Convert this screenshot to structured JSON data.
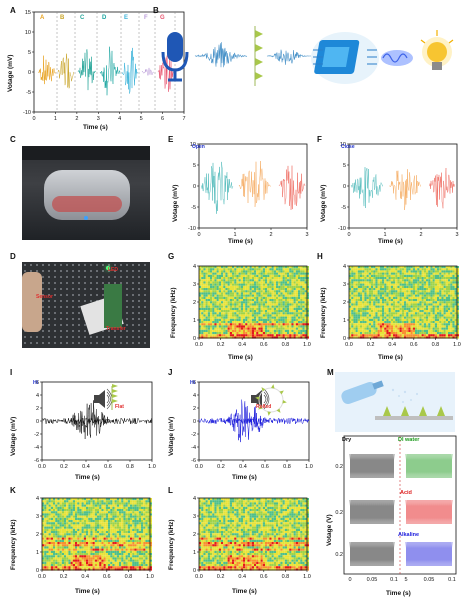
{
  "panels": {
    "A": {
      "letter": "A",
      "xlabel": "Time (s)",
      "ylabel": "Votage (mV)",
      "xticks": [
        "0",
        "1",
        "2",
        "3",
        "4",
        "5",
        "6",
        "7"
      ],
      "yticks": [
        "15",
        "10",
        "5",
        "0",
        "-5",
        "-10"
      ],
      "segments": [
        {
          "label": "A",
          "color": "#e8a321"
        },
        {
          "label": "B",
          "color": "#c9a52a"
        },
        {
          "label": "C",
          "color": "#2aa79b"
        },
        {
          "label": "D",
          "color": "#1aa5a0"
        },
        {
          "label": "E",
          "color": "#3bb3d9"
        },
        {
          "label": "F",
          "color": "#b99ad8"
        },
        {
          "label": "G",
          "color": "#e8546f"
        }
      ]
    },
    "B": {
      "letter": "B"
    },
    "C": {
      "letter": "C"
    },
    "D": {
      "letter": "D",
      "notes": {
        "sensor": "Sensor",
        "led": "LED",
        "transfer": "Transfer"
      }
    },
    "E": {
      "letter": "E",
      "tag": "Open",
      "xlabel": "Time (s)",
      "ylabel": "Votage (mV)",
      "xticks": [
        "0",
        "1",
        "2",
        "3"
      ],
      "yticks": [
        "10",
        "5",
        "0",
        "-5",
        "-10"
      ]
    },
    "F": {
      "letter": "F",
      "tag": "Close",
      "xlabel": "Time (s)",
      "ylabel": "Votage (mV)",
      "xticks": [
        "0",
        "1",
        "2",
        "3"
      ],
      "yticks": [
        "10",
        "5",
        "0",
        "-5",
        "-10"
      ]
    },
    "G": {
      "letter": "G",
      "xlabel": "Time (s)",
      "ylabel": "Frequency (kHz)",
      "xticks": [
        "0.0",
        "0.2",
        "0.4",
        "0.6",
        "0.8",
        "1.0"
      ],
      "yticks": [
        "4",
        "3",
        "2",
        "1",
        "0"
      ]
    },
    "H": {
      "letter": "H",
      "xlabel": "Time (s)",
      "ylabel": "Frequency (kHz)",
      "xticks": [
        "0.0",
        "0.2",
        "0.4",
        "0.6",
        "0.8",
        "1.0"
      ],
      "yticks": [
        "4",
        "3",
        "2",
        "1",
        "0"
      ]
    },
    "I": {
      "letter": "I",
      "tag": "Hi",
      "state": "Flat",
      "xlabel": "Time (s)",
      "ylabel": "Voltage (mV)",
      "xticks": [
        "0.0",
        "0.2",
        "0.4",
        "0.6",
        "0.8",
        "1.0"
      ],
      "yticks": [
        "6",
        "4",
        "2",
        "0",
        "-2",
        "-4",
        "-6"
      ]
    },
    "J": {
      "letter": "J",
      "tag": "Hi",
      "state": "Rolled",
      "xlabel": "Time (s)",
      "ylabel": "Voltage (mV)",
      "xticks": [
        "0.0",
        "0.2",
        "0.4",
        "0.6",
        "0.8",
        "1.0"
      ],
      "yticks": [
        "6",
        "4",
        "2",
        "0",
        "-2",
        "-4",
        "-6"
      ]
    },
    "K": {
      "letter": "K",
      "xlabel": "Time (s)",
      "ylabel": "Frequency (kHz)",
      "xticks": [
        "0.0",
        "0.2",
        "0.4",
        "0.6",
        "0.8",
        "1.0"
      ],
      "yticks": [
        "4",
        "3",
        "2",
        "1",
        "0"
      ]
    },
    "L": {
      "letter": "L",
      "xlabel": "Time (s)",
      "ylabel": "Frequency (kHz)",
      "xticks": [
        "0.0",
        "0.2",
        "0.4",
        "0.6",
        "0.8",
        "1.0"
      ],
      "yticks": [
        "4",
        "3",
        "2",
        "1",
        "0"
      ]
    },
    "M": {
      "letter": "M",
      "xlabel": "Time (s)",
      "ylabel": "Votage (V)",
      "xticks_left": [
        "0",
        "0.05",
        "0.1"
      ],
      "xticks_right": [
        "5",
        "0.05",
        "0.1"
      ],
      "yticks": [
        "0.2",
        "0.2",
        "0.2"
      ],
      "labels": {
        "dry": "Dry",
        "di": "DI water",
        "acid": "Acid",
        "alkaline": "Alkaline"
      }
    }
  },
  "colors": {
    "open1": "#5bbfbf",
    "open2": "#f6b06a",
    "open3": "#f0746a",
    "hi_flat": "#111111",
    "hi_rolled": "#1a1adb"
  }
}
